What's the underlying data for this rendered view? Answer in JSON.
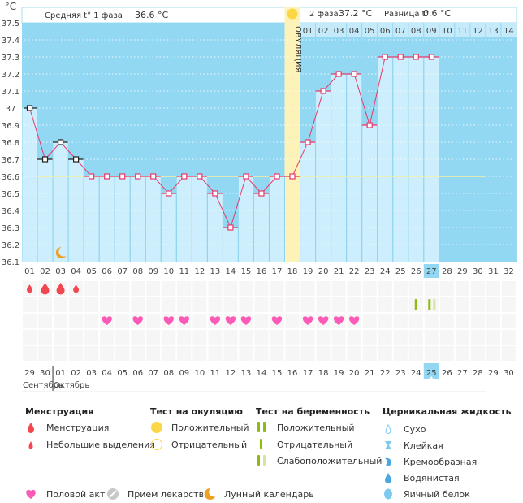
{
  "chart_data": {
    "type": "line",
    "title": "",
    "ylabel": "°C",
    "ylim": [
      36.1,
      37.5
    ],
    "yticks": [
      "37.5",
      "37.4",
      "37.3",
      "37.2",
      "37.1",
      "37",
      "36.9",
      "36.8",
      "36.7",
      "36.6",
      "36.5",
      "36.4",
      "36.3",
      "36.2",
      "36.1"
    ],
    "cycle_days": [
      "01",
      "02",
      "03",
      "04",
      "05",
      "06",
      "07",
      "08",
      "09",
      "10",
      "11",
      "12",
      "13",
      "14",
      "15",
      "16",
      "17",
      "18",
      "19",
      "20",
      "21",
      "22",
      "23",
      "24",
      "25",
      "26",
      "27",
      "28",
      "29",
      "30",
      "31",
      "32"
    ],
    "after_ovulation_days": [
      "01",
      "02",
      "03",
      "04",
      "05",
      "06",
      "07",
      "08",
      "09",
      "10",
      "11",
      "12",
      "13",
      "14"
    ],
    "temperatures": [
      37.0,
      36.7,
      36.8,
      36.7,
      36.6,
      36.6,
      36.6,
      36.6,
      36.6,
      36.5,
      36.6,
      36.6,
      36.5,
      36.3,
      36.6,
      36.5,
      36.6,
      36.6,
      36.8,
      37.1,
      37.2,
      37.2,
      36.9,
      37.3,
      37.3,
      37.3,
      37.3
    ],
    "phase1_count": 4,
    "coverline": 36.6,
    "ovulation_day": 18,
    "current_cycle_day": 27,
    "ovulation_label": "ОВУЛЯЦИЯ",
    "calendar_dates": [
      "29",
      "30",
      "01",
      "02",
      "03",
      "04",
      "05",
      "06",
      "07",
      "08",
      "09",
      "10",
      "11",
      "12",
      "13",
      "14",
      "15",
      "16",
      "17",
      "18",
      "19",
      "20",
      "21",
      "22",
      "23",
      "24",
      "25",
      "26",
      "27",
      "28",
      "29",
      "30"
    ],
    "highlighted_dates": [
      5,
      6,
      12,
      13,
      19,
      20,
      26
    ],
    "today_index": 27,
    "months": {
      "left": "Сентябрь",
      "right": "Октябрь"
    },
    "menstruation": [
      {
        "day": 1,
        "type": "light"
      },
      {
        "day": 2,
        "type": "full"
      },
      {
        "day": 3,
        "type": "full"
      },
      {
        "day": 4,
        "type": "light"
      }
    ],
    "pregnancy_tests": [
      {
        "day": 26,
        "type": "negative"
      },
      {
        "day": 27,
        "type": "weak"
      }
    ],
    "intercourse_days": [
      6,
      8,
      10,
      11,
      13,
      14,
      15,
      17,
      19,
      20,
      21,
      22
    ],
    "lunar_day": 3
  },
  "header": {
    "phase1_label": "Средняя t° 1 фаза",
    "phase1_value": "36.6 °C",
    "phase2_label": "2 фаза",
    "phase2_value": "37.2 °C",
    "diff_label": "Разница t°",
    "diff_value": "0.6 °C"
  },
  "colors": {
    "sky": "#93d8f2",
    "bar": "#cdeefc",
    "line": "#e8386a",
    "ovulation": "#fdf3b8",
    "sun": "#fcd745",
    "blood": "#f2474f",
    "heart": "#fb5ab6",
    "green": "#8dbb10",
    "green_light": "#d2e6a2",
    "moon": "#f0a020",
    "red_date": "#e8386a",
    "fluid": "#7ccaf0"
  },
  "legend": {
    "menstruation": {
      "title": "Менструация",
      "items": [
        "Менструация",
        "Небольшие выделения"
      ]
    },
    "ovulation_test": {
      "title": "Тест на овуляцию",
      "items": [
        "Положительный",
        "Отрицательный"
      ]
    },
    "pregnancy_test": {
      "title": "Тест на беременность",
      "items": [
        "Положительный",
        "Отрицательный",
        "Слабоположительный"
      ]
    },
    "cervical": {
      "title": "Цервикальная жидкость",
      "items": [
        "Сухо",
        "Клейкая",
        "Кремообразная",
        "Водянистая",
        "Яичный белок"
      ]
    },
    "other": [
      "Половой акт",
      "Прием лекарств",
      "Лунный календарь"
    ]
  }
}
